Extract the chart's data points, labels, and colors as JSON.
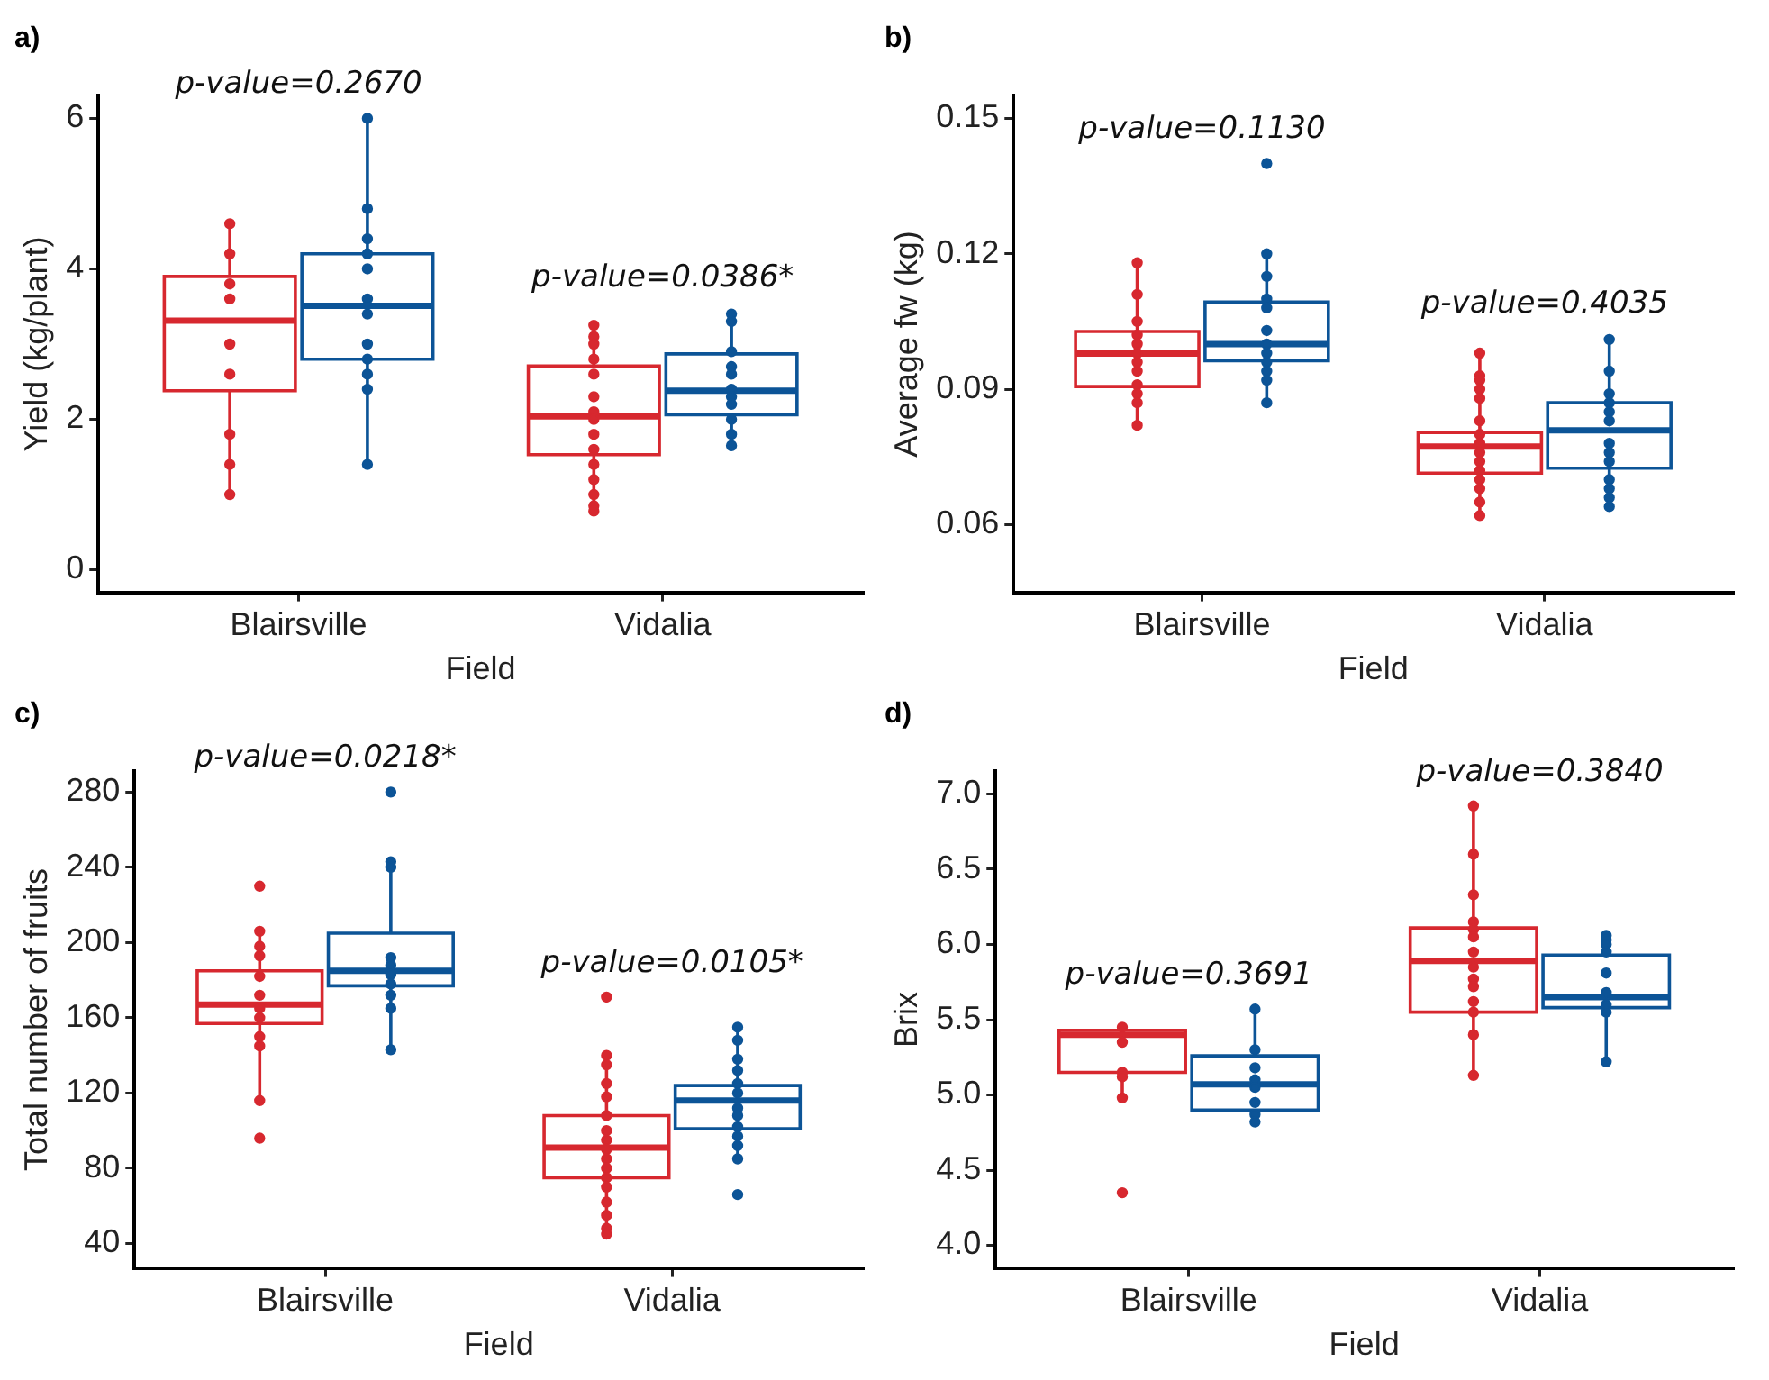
{
  "chart_data": [
    {
      "type": "box",
      "title": "a)",
      "xlabel": "Field",
      "ylabel": "Yield (kg/plant)",
      "categories": [
        "Blairsville",
        "Vidalia"
      ],
      "ylim": [
        -0.3,
        6.3
      ],
      "yticks": [
        0,
        2,
        4,
        6
      ],
      "series": [
        {
          "color": "#d7282f",
          "boxes": [
            {
              "low": 1.0,
              "q1": 2.38,
              "median": 3.31,
              "q3": 3.9,
              "high": 4.61
            },
            {
              "low": 0.78,
              "q1": 1.53,
              "median": 2.04,
              "q3": 2.71,
              "high": 3.27
            }
          ]
        },
        {
          "color": "#0c5497",
          "boxes": [
            {
              "low": 1.39,
              "q1": 2.8,
              "median": 3.51,
              "q3": 4.2,
              "high": 6.0
            },
            {
              "low": 1.63,
              "q1": 2.06,
              "median": 2.38,
              "q3": 2.87,
              "high": 3.43
            }
          ]
        },
        {
          "type": "scatter",
          "color": "#d7282f",
          "x": [
            "Blairsville",
            "Blairsville",
            "Blairsville",
            "Blairsville",
            "Blairsville",
            "Blairsville",
            "Blairsville",
            "Blairsville",
            "Blairsville",
            "Vidalia",
            "Vidalia",
            "Vidalia",
            "Vidalia",
            "Vidalia",
            "Vidalia",
            "Vidalia",
            "Vidalia",
            "Vidalia",
            "Vidalia",
            "Vidalia",
            "Vidalia",
            "Vidalia",
            "Vidalia",
            "Vidalia"
          ],
          "values": [
            4.6,
            4.2,
            3.8,
            3.6,
            3.0,
            2.6,
            1.8,
            1.4,
            1.0,
            3.25,
            3.1,
            3.0,
            2.8,
            2.6,
            2.3,
            2.1,
            2.0,
            1.8,
            1.6,
            1.4,
            1.2,
            1.0,
            0.85,
            0.78
          ]
        },
        {
          "type": "scatter",
          "color": "#0c5497",
          "x": [
            "Blairsville",
            "Blairsville",
            "Blairsville",
            "Blairsville",
            "Blairsville",
            "Blairsville",
            "Blairsville",
            "Blairsville",
            "Blairsville",
            "Blairsville",
            "Blairsville",
            "Blairsville",
            "Vidalia",
            "Vidalia",
            "Vidalia",
            "Vidalia",
            "Vidalia",
            "Vidalia",
            "Vidalia",
            "Vidalia",
            "Vidalia",
            "Vidalia",
            "Vidalia"
          ],
          "values": [
            6.0,
            4.8,
            4.4,
            4.2,
            4.0,
            3.6,
            3.4,
            3.0,
            2.8,
            2.6,
            2.4,
            1.4,
            3.4,
            3.3,
            2.9,
            2.7,
            2.6,
            2.4,
            2.3,
            2.2,
            2.0,
            1.8,
            1.65
          ]
        }
      ],
      "annotations": [
        "p-value=0.2670",
        "p-value=0.0386*"
      ]
    },
    {
      "type": "box",
      "title": "b)",
      "xlabel": "Field",
      "ylabel": "Average fw (kg)",
      "categories": [
        "Blairsville",
        "Vidalia"
      ],
      "ylim": [
        0.045,
        0.155
      ],
      "yticks": [
        0.06,
        0.09,
        0.12,
        0.15
      ],
      "series": [
        {
          "color": "#d7282f",
          "boxes": [
            {
              "low": 0.0824,
              "q1": 0.0906,
              "median": 0.0979,
              "q3": 0.1028,
              "high": 0.1183
            },
            {
              "low": 0.0619,
              "q1": 0.0714,
              "median": 0.0773,
              "q3": 0.0804,
              "high": 0.0979
            }
          ]
        },
        {
          "color": "#0c5497",
          "boxes": [
            {
              "low": 0.0868,
              "q1": 0.0963,
              "median": 0.1,
              "q3": 0.1093,
              "high": 0.121
            },
            {
              "low": 0.0643,
              "q1": 0.0725,
              "median": 0.0809,
              "q3": 0.087,
              "high": 0.1013
            }
          ]
        },
        {
          "type": "scatter",
          "color": "#d7282f",
          "x": [
            "Blairsville",
            "Blairsville",
            "Blairsville",
            "Blairsville",
            "Blairsville",
            "Blairsville",
            "Blairsville",
            "Blairsville",
            "Blairsville",
            "Blairsville",
            "Blairsville",
            "Blairsville",
            "Vidalia",
            "Vidalia",
            "Vidalia",
            "Vidalia",
            "Vidalia",
            "Vidalia",
            "Vidalia",
            "Vidalia",
            "Vidalia",
            "Vidalia",
            "Vidalia",
            "Vidalia",
            "Vidalia",
            "Vidalia",
            "Vidalia"
          ],
          "values": [
            0.118,
            0.111,
            0.105,
            0.102,
            0.1,
            0.098,
            0.096,
            0.094,
            0.091,
            0.089,
            0.087,
            0.082,
            0.098,
            0.093,
            0.092,
            0.09,
            0.088,
            0.083,
            0.08,
            0.078,
            0.076,
            0.074,
            0.072,
            0.07,
            0.068,
            0.065,
            0.062
          ]
        },
        {
          "type": "scatter",
          "color": "#0c5497",
          "x": [
            "Blairsville",
            "Blairsville",
            "Blairsville",
            "Blairsville",
            "Blairsville",
            "Blairsville",
            "Blairsville",
            "Blairsville",
            "Blairsville",
            "Blairsville",
            "Blairsville",
            "Blairsville",
            "Vidalia",
            "Vidalia",
            "Vidalia",
            "Vidalia",
            "Vidalia",
            "Vidalia",
            "Vidalia",
            "Vidalia",
            "Vidalia",
            "Vidalia",
            "Vidalia",
            "Vidalia",
            "Vidalia"
          ],
          "values": [
            0.14,
            0.12,
            0.115,
            0.11,
            0.108,
            0.103,
            0.1,
            0.098,
            0.096,
            0.094,
            0.092,
            0.087,
            0.101,
            0.094,
            0.089,
            0.087,
            0.085,
            0.083,
            0.078,
            0.076,
            0.074,
            0.07,
            0.068,
            0.066,
            0.064
          ]
        }
      ],
      "annotations": [
        "p-value=0.1130",
        "p-value=0.4035"
      ]
    },
    {
      "type": "box",
      "title": "c)",
      "xlabel": "Field",
      "ylabel": "Total number of fruits",
      "categories": [
        "Blairsville",
        "Vidalia"
      ],
      "ylim": [
        27,
        291
      ],
      "yticks": [
        40,
        80,
        120,
        160,
        200,
        240,
        280
      ],
      "series": [
        {
          "color": "#d7282f",
          "boxes": [
            {
              "low": 115,
              "q1": 157,
              "median": 167,
              "q3": 185,
              "high": 206
            },
            {
              "low": 45,
              "q1": 75,
              "median": 91,
              "q3": 108,
              "high": 140
            }
          ]
        },
        {
          "color": "#0c5497",
          "boxes": [
            {
              "low": 143,
              "q1": 177,
              "median": 185,
              "q3": 205,
              "high": 243
            },
            {
              "low": 83,
              "q1": 101,
              "median": 116,
              "q3": 124,
              "high": 155
            }
          ]
        },
        {
          "type": "scatter",
          "color": "#d7282f",
          "x": [
            "Blairsville",
            "Blairsville",
            "Blairsville",
            "Blairsville",
            "Blairsville",
            "Blairsville",
            "Blairsville",
            "Blairsville",
            "Blairsville",
            "Blairsville",
            "Blairsville",
            "Blairsville",
            "Vidalia",
            "Vidalia",
            "Vidalia",
            "Vidalia",
            "Vidalia",
            "Vidalia",
            "Vidalia",
            "Vidalia",
            "Vidalia",
            "Vidalia",
            "Vidalia",
            "Vidalia",
            "Vidalia",
            "Vidalia",
            "Vidalia",
            "Vidalia",
            "Vidalia"
          ],
          "values": [
            230,
            206,
            198,
            193,
            182,
            172,
            165,
            160,
            150,
            145,
            116,
            96,
            171,
            140,
            135,
            125,
            118,
            108,
            100,
            95,
            90,
            85,
            80,
            75,
            70,
            62,
            55,
            48,
            45
          ]
        },
        {
          "type": "scatter",
          "color": "#0c5497",
          "x": [
            "Blairsville",
            "Blairsville",
            "Blairsville",
            "Blairsville",
            "Blairsville",
            "Blairsville",
            "Blairsville",
            "Blairsville",
            "Blairsville",
            "Blairsville",
            "Vidalia",
            "Vidalia",
            "Vidalia",
            "Vidalia",
            "Vidalia",
            "Vidalia",
            "Vidalia",
            "Vidalia",
            "Vidalia",
            "Vidalia",
            "Vidalia",
            "Vidalia",
            "Vidalia"
          ],
          "values": [
            280,
            243,
            240,
            192,
            188,
            183,
            178,
            172,
            165,
            143,
            155,
            148,
            138,
            132,
            125,
            120,
            112,
            108,
            102,
            97,
            92,
            85,
            66
          ]
        }
      ],
      "annotations": [
        "p-value=0.0218*",
        "p-value=0.0105*"
      ]
    },
    {
      "type": "box",
      "title": "d)",
      "xlabel": "Field",
      "ylabel": "Brix",
      "categories": [
        "Blairsville",
        "Vidalia"
      ],
      "ylim": [
        3.85,
        7.15
      ],
      "yticks": [
        {
          "value": 4,
          "label": "4.0"
        },
        4.5,
        {
          "value": 5,
          "label": "5.0"
        },
        5.5,
        {
          "value": 6,
          "label": "6.0"
        },
        6.5,
        {
          "value": 7,
          "label": "7.0"
        }
      ],
      "series": [
        {
          "color": "#d7282f",
          "boxes": [
            {
              "low": 4.98,
              "q1": 5.15,
              "median": 5.4,
              "q3": 5.43,
              "high": 5.46
            },
            {
              "low": 5.13,
              "q1": 5.55,
              "median": 5.89,
              "q3": 6.11,
              "high": 6.92
            }
          ]
        },
        {
          "color": "#0c5497",
          "boxes": [
            {
              "low": 4.8,
              "q1": 4.9,
              "median": 5.07,
              "q3": 5.26,
              "high": 5.57
            },
            {
              "low": 5.22,
              "q1": 5.58,
              "median": 5.65,
              "q3": 5.93,
              "high": 6.06
            }
          ]
        },
        {
          "type": "scatter",
          "color": "#d7282f",
          "x": [
            "Blairsville",
            "Blairsville",
            "Blairsville",
            "Blairsville",
            "Blairsville",
            "Blairsville",
            "Vidalia",
            "Vidalia",
            "Vidalia",
            "Vidalia",
            "Vidalia",
            "Vidalia",
            "Vidalia",
            "Vidalia",
            "Vidalia",
            "Vidalia",
            "Vidalia",
            "Vidalia",
            "Vidalia",
            "Vidalia"
          ],
          "values": [
            5.45,
            5.35,
            5.15,
            5.12,
            4.98,
            4.35,
            6.92,
            6.6,
            6.33,
            6.15,
            6.1,
            6.05,
            5.95,
            5.85,
            5.77,
            5.72,
            5.62,
            5.55,
            5.4,
            5.13
          ]
        },
        {
          "type": "scatter",
          "color": "#0c5497",
          "x": [
            "Blairsville",
            "Blairsville",
            "Blairsville",
            "Blairsville",
            "Blairsville",
            "Blairsville",
            "Blairsville",
            "Blairsville",
            "Vidalia",
            "Vidalia",
            "Vidalia",
            "Vidalia",
            "Vidalia",
            "Vidalia",
            "Vidalia",
            "Vidalia",
            "Vidalia"
          ],
          "values": [
            5.57,
            5.3,
            5.18,
            5.1,
            5.05,
            4.95,
            4.87,
            4.82,
            6.06,
            6.03,
            6.0,
            5.95,
            5.81,
            5.68,
            5.6,
            5.55,
            5.22
          ]
        }
      ],
      "annotations": [
        "p-value=0.3691",
        "p-value=0.3840"
      ]
    }
  ]
}
